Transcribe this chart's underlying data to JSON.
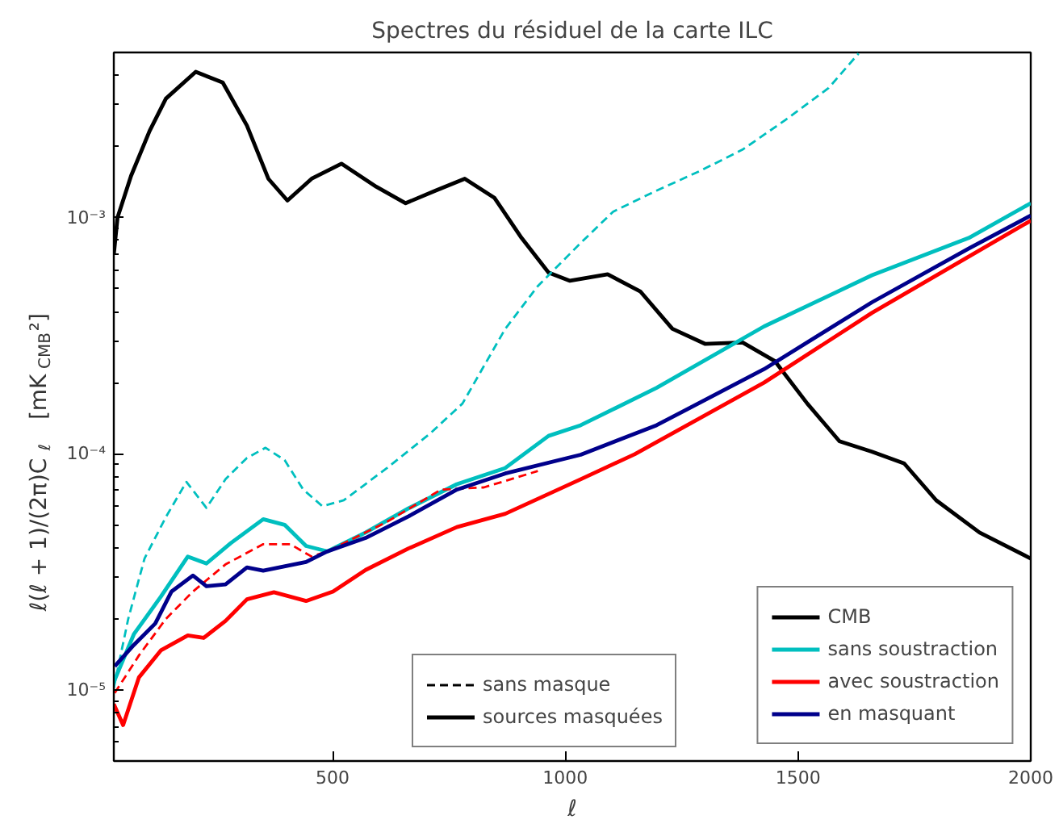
{
  "chart_data": {
    "type": "line",
    "title": "Spectres du résiduel de la carte ILC",
    "xlabel": "ℓ",
    "ylabel": "ℓ(ℓ + 1)/(2π)C$_{ℓ}$   [mK$_{CMB}$²]",
    "log": "y",
    "grid": false,
    "legend": "bottom right",
    "marker": "none",
    "xlim": [
      30,
      2000
    ],
    "xticks": [
      500,
      1000,
      1500,
      2000
    ],
    "ylim": [
      5e-06,
      0.005
    ],
    "yticks": [
      {
        "value": 1e-05,
        "label": "10⁻⁵"
      },
      {
        "value": 0.0001,
        "label": "10⁻⁴"
      },
      {
        "value": 0.001,
        "label": "10⁻³"
      }
    ],
    "annotations": [
      "sans masque",
      "sources masquées"
    ],
    "series": [
      {
        "name": "CMB",
        "color": "#000000",
        "line_style": "solid",
        "x": [
          30,
          38,
          67,
          107,
          142,
          206,
          264,
          316,
          362,
          403,
          455,
          519,
          594,
          657,
          721,
          784,
          848,
          906,
          964,
          1010,
          1091,
          1161,
          1230,
          1300,
          1381,
          1450,
          1520,
          1589,
          1659,
          1728,
          1797,
          1890,
          2000
        ],
        "values": [
          0.000698,
          0.001,
          0.0015,
          0.00233,
          0.00319,
          0.00414,
          0.00373,
          0.00245,
          0.00146,
          0.00118,
          0.00146,
          0.00169,
          0.00135,
          0.00115,
          0.0013,
          0.00146,
          0.00121,
          0.00082,
          0.000585,
          0.00054,
          0.000575,
          0.000487,
          0.000338,
          0.000292,
          0.000296,
          0.000247,
          0.000163,
          0.000113,
          0.000102,
          9.1e-05,
          6.35e-05,
          4.64e-05,
          3.6e-05
        ]
      },
      {
        "name": "sans soustraction",
        "color": "#00bfbf",
        "line_style": "solid",
        "x": [
          30,
          73,
          131,
          189,
          229,
          281,
          351,
          397,
          443,
          489,
          571,
          663,
          767,
          871,
          964,
          1033,
          1196,
          1427,
          1659,
          1867,
          2000
        ],
        "values": [
          1.08e-05,
          1.72e-05,
          2.48e-05,
          3.67e-05,
          3.43e-05,
          4.18e-05,
          5.28e-05,
          5e-05,
          4.07e-05,
          3.86e-05,
          4.64e-05,
          5.87e-05,
          7.43e-05,
          8.7e-05,
          0.000119,
          0.000132,
          0.00019,
          0.000346,
          0.00057,
          0.00082,
          0.00115
        ]
      },
      {
        "color": "#00bfbf",
        "line_style": "dashed",
        "x": [
          30,
          61,
          96,
          142,
          186,
          229,
          270,
          316,
          356,
          397,
          437,
          478,
          524,
          617,
          710,
          779,
          871,
          941,
          1033,
          1103,
          1196,
          1288,
          1381,
          1473,
          1566,
          1630
        ],
        "values": [
          1.02e-05,
          2e-05,
          3.6e-05,
          5.4e-05,
          7.6e-05,
          5.9e-05,
          7.8e-05,
          9.6e-05,
          0.000106,
          9.4e-05,
          7.05e-05,
          6e-05,
          6.35e-05,
          8.7e-05,
          0.000122,
          0.000163,
          0.000338,
          0.000513,
          0.00078,
          0.00106,
          0.0013,
          0.00157,
          0.00194,
          0.00259,
          0.00354,
          0.00495
        ]
      },
      {
        "name": "avec soustraction",
        "color": "#ff0000",
        "line_style": "solid",
        "x": [
          30,
          50,
          84,
          131,
          189,
          223,
          270,
          316,
          374,
          443,
          501,
          571,
          663,
          767,
          871,
          1033,
          1149,
          1427,
          1659,
          1867,
          2000
        ],
        "values": [
          8.7e-06,
          7.1e-06,
          1.13e-05,
          1.47e-05,
          1.7e-05,
          1.66e-05,
          1.96e-05,
          2.42e-05,
          2.59e-05,
          2.38e-05,
          2.61e-05,
          3.22e-05,
          3.97e-05,
          4.89e-05,
          5.57e-05,
          7.8e-05,
          9.95e-05,
          0.0002,
          0.000395,
          0.000684,
          0.00097
        ]
      },
      {
        "color": "#ff0000",
        "line_style": "dashed",
        "x": [
          32,
          84,
          142,
          200,
          270,
          351,
          409,
          455,
          489,
          617,
          733,
          825,
          941
        ],
        "values": [
          9.7e-06,
          1.4e-05,
          2e-05,
          2.61e-05,
          3.4e-05,
          4.14e-05,
          4.14e-05,
          3.67e-05,
          3.86e-05,
          5.15e-05,
          7.05e-05,
          7.2e-05,
          8.45e-05
        ]
      },
      {
        "name": "en masquant",
        "color": "#00008b",
        "line_style": "solid",
        "x": [
          32,
          73,
          119,
          154,
          200,
          229,
          270,
          316,
          351,
          443,
          489,
          571,
          663,
          767,
          871,
          1033,
          1196,
          1427,
          1659,
          1867,
          2000
        ],
        "values": [
          1.26e-05,
          1.55e-05,
          1.91e-05,
          2.61e-05,
          3.05e-05,
          2.75e-05,
          2.8e-05,
          3.3e-05,
          3.2e-05,
          3.48e-05,
          3.86e-05,
          4.4e-05,
          5.43e-05,
          7.05e-05,
          8.25e-05,
          9.9e-05,
          0.000132,
          0.000228,
          0.000438,
          0.00074,
          0.00102
        ]
      }
    ]
  }
}
